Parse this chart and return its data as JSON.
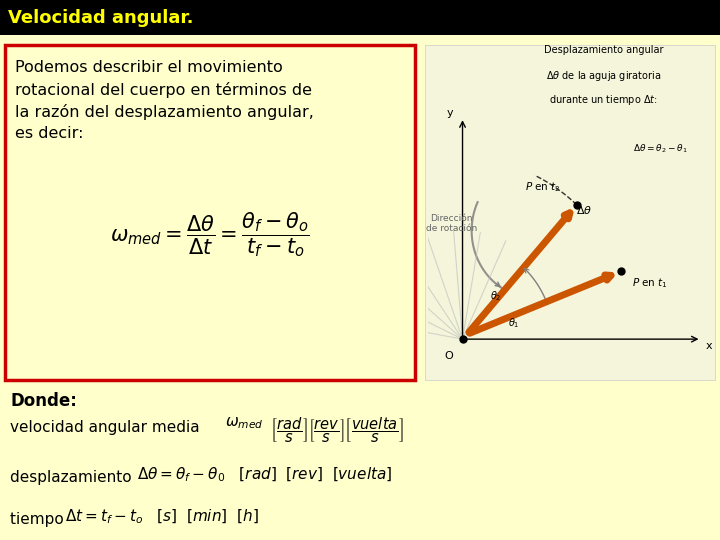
{
  "title": "Velocidad angular.",
  "title_bg": "#000000",
  "title_color": "#FFFF00",
  "bg_color": "#FFFFCC",
  "box_text_line1": "Podemos describir el movimiento",
  "box_text_line2": "rotacional del cuerpo en términos de",
  "box_text_line3": "la razón del desplazamiento angular,",
  "box_text_line4": "es decir:",
  "box_border_color": "#CC0000",
  "box_bg_color": "#FFFFCC",
  "donde_label": "Donde:",
  "line1_plain": "velocidad angular media ",
  "line2_plain": "desplazamiento ",
  "line3_plain": "tiempo "
}
